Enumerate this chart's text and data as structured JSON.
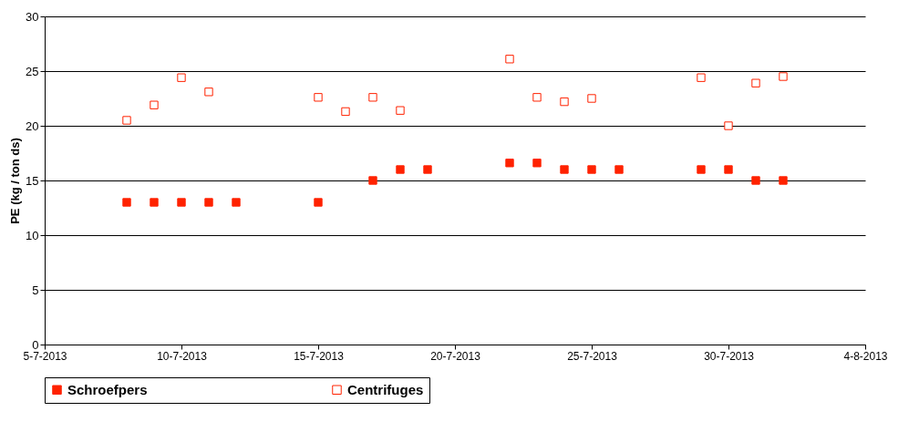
{
  "chart_data": {
    "type": "scatter",
    "ylabel": "PE (kg / ton ds)",
    "marker": "square",
    "grid": "y",
    "legend": "bottom",
    "xlim": [
      "2013-07-05",
      "2013-08-04"
    ],
    "xticks": [
      {
        "value": "2013-07-05",
        "label": "5-7-2013"
      },
      {
        "value": "2013-07-10",
        "label": "10-7-2013"
      },
      {
        "value": "2013-07-15",
        "label": "15-7-2013"
      },
      {
        "value": "2013-07-20",
        "label": "20-7-2013"
      },
      {
        "value": "2013-07-25",
        "label": "25-7-2013"
      },
      {
        "value": "2013-07-30",
        "label": "30-7-2013"
      },
      {
        "value": "2013-08-04",
        "label": "4-8-2013"
      }
    ],
    "ylim": [
      0,
      30
    ],
    "yticks": [
      0,
      5,
      10,
      15,
      20,
      25,
      30
    ],
    "series": [
      {
        "name": "Schroefpers",
        "color": "#ff2200",
        "x": [
          "2013-07-08",
          "2013-07-09",
          "2013-07-10",
          "2013-07-11",
          "2013-07-12",
          "2013-07-15",
          "2013-07-17",
          "2013-07-18",
          "2013-07-19",
          "2013-07-22",
          "2013-07-23",
          "2013-07-24",
          "2013-07-25",
          "2013-07-26",
          "2013-07-29",
          "2013-07-30",
          "2013-07-31",
          "2013-08-01"
        ],
        "values": [
          13,
          13,
          13,
          13,
          13,
          13,
          15,
          16,
          16,
          16.6,
          16.6,
          16,
          16,
          16,
          16,
          16,
          15,
          15
        ]
      },
      {
        "name": "Centrifuges",
        "color": "#ff2200",
        "x": [
          "2013-07-08",
          "2013-07-09",
          "2013-07-10",
          "2013-07-11",
          "2013-07-15",
          "2013-07-16",
          "2013-07-17",
          "2013-07-18",
          "2013-07-22",
          "2013-07-23",
          "2013-07-24",
          "2013-07-25",
          "2013-07-29",
          "2013-07-30",
          "2013-07-31",
          "2013-08-01"
        ],
        "values": [
          20.5,
          21.9,
          24.4,
          23.1,
          22.6,
          21.3,
          22.6,
          21.4,
          26.1,
          22.6,
          22.2,
          22.5,
          24.4,
          20.0,
          23.9,
          24.5
        ]
      }
    ]
  }
}
